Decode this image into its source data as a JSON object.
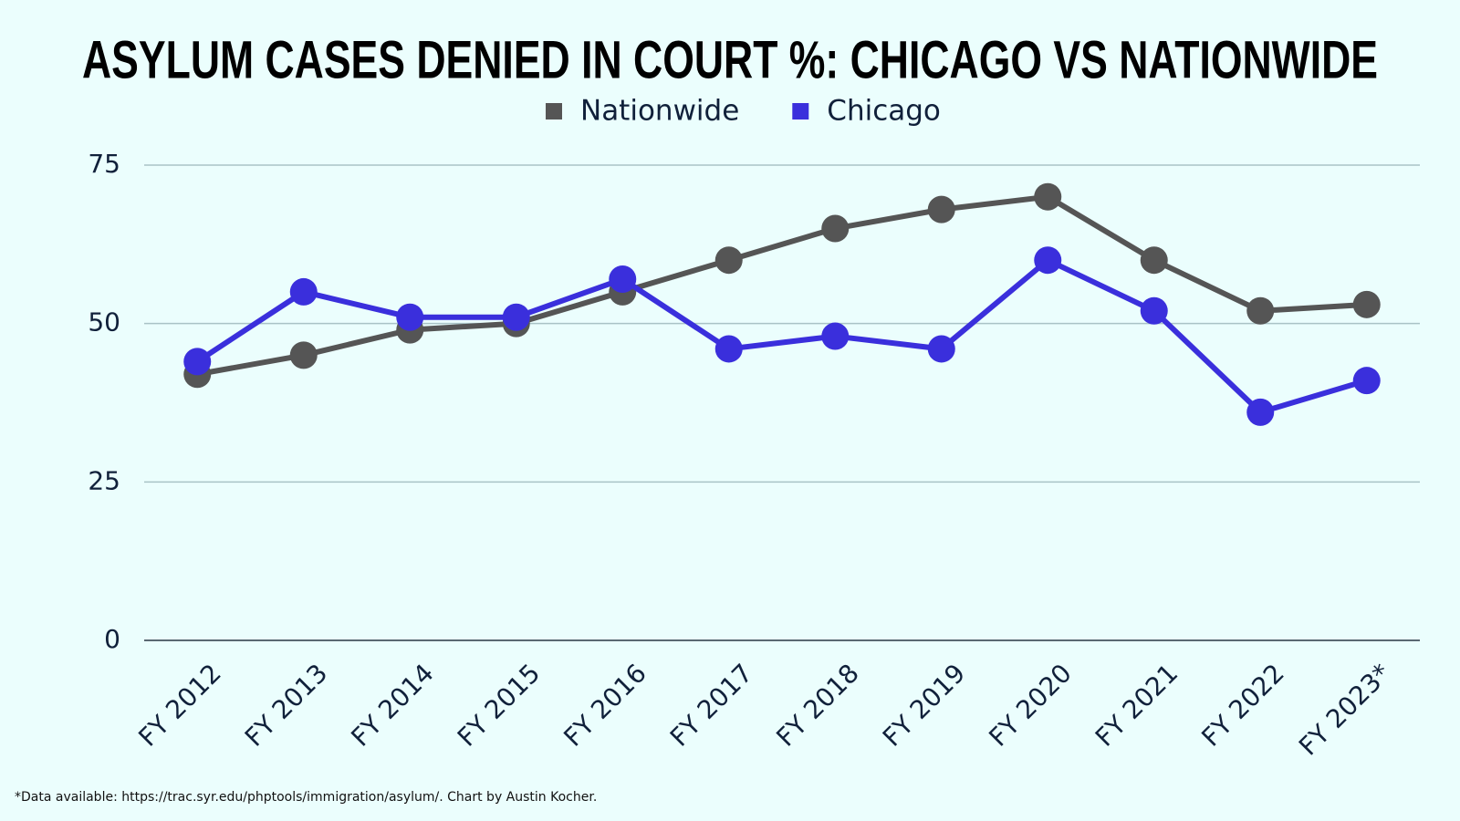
{
  "chart_data": {
    "type": "line",
    "title": "ASYLUM CASES DENIED IN COURT %: CHICAGO VS NATIONWIDE",
    "categories": [
      "FY 2012",
      "FY 2013",
      "FY 2014",
      "FY 2015",
      "FY 2016",
      "FY 2017",
      "FY 2018",
      "FY 2019",
      "FY 2020",
      "FY 2021",
      "FY 2022",
      "FY 2023*"
    ],
    "series": [
      {
        "name": "Nationwide",
        "color": "#555555",
        "values": [
          42,
          45,
          49,
          50,
          55,
          60,
          65,
          68,
          70,
          60,
          52,
          53
        ]
      },
      {
        "name": "Chicago",
        "color": "#3a2fdc",
        "values": [
          44,
          55,
          51,
          51,
          57,
          46,
          48,
          46,
          60,
          52,
          36,
          41
        ]
      }
    ],
    "ylim": [
      0,
      75
    ],
    "yticks": [
      0,
      25,
      50,
      75
    ],
    "grid": true,
    "legend": "top",
    "footnote": "*Data available: https://trac.syr.edu/phptools/immigration/asylum/. Chart by Austin Kocher."
  }
}
